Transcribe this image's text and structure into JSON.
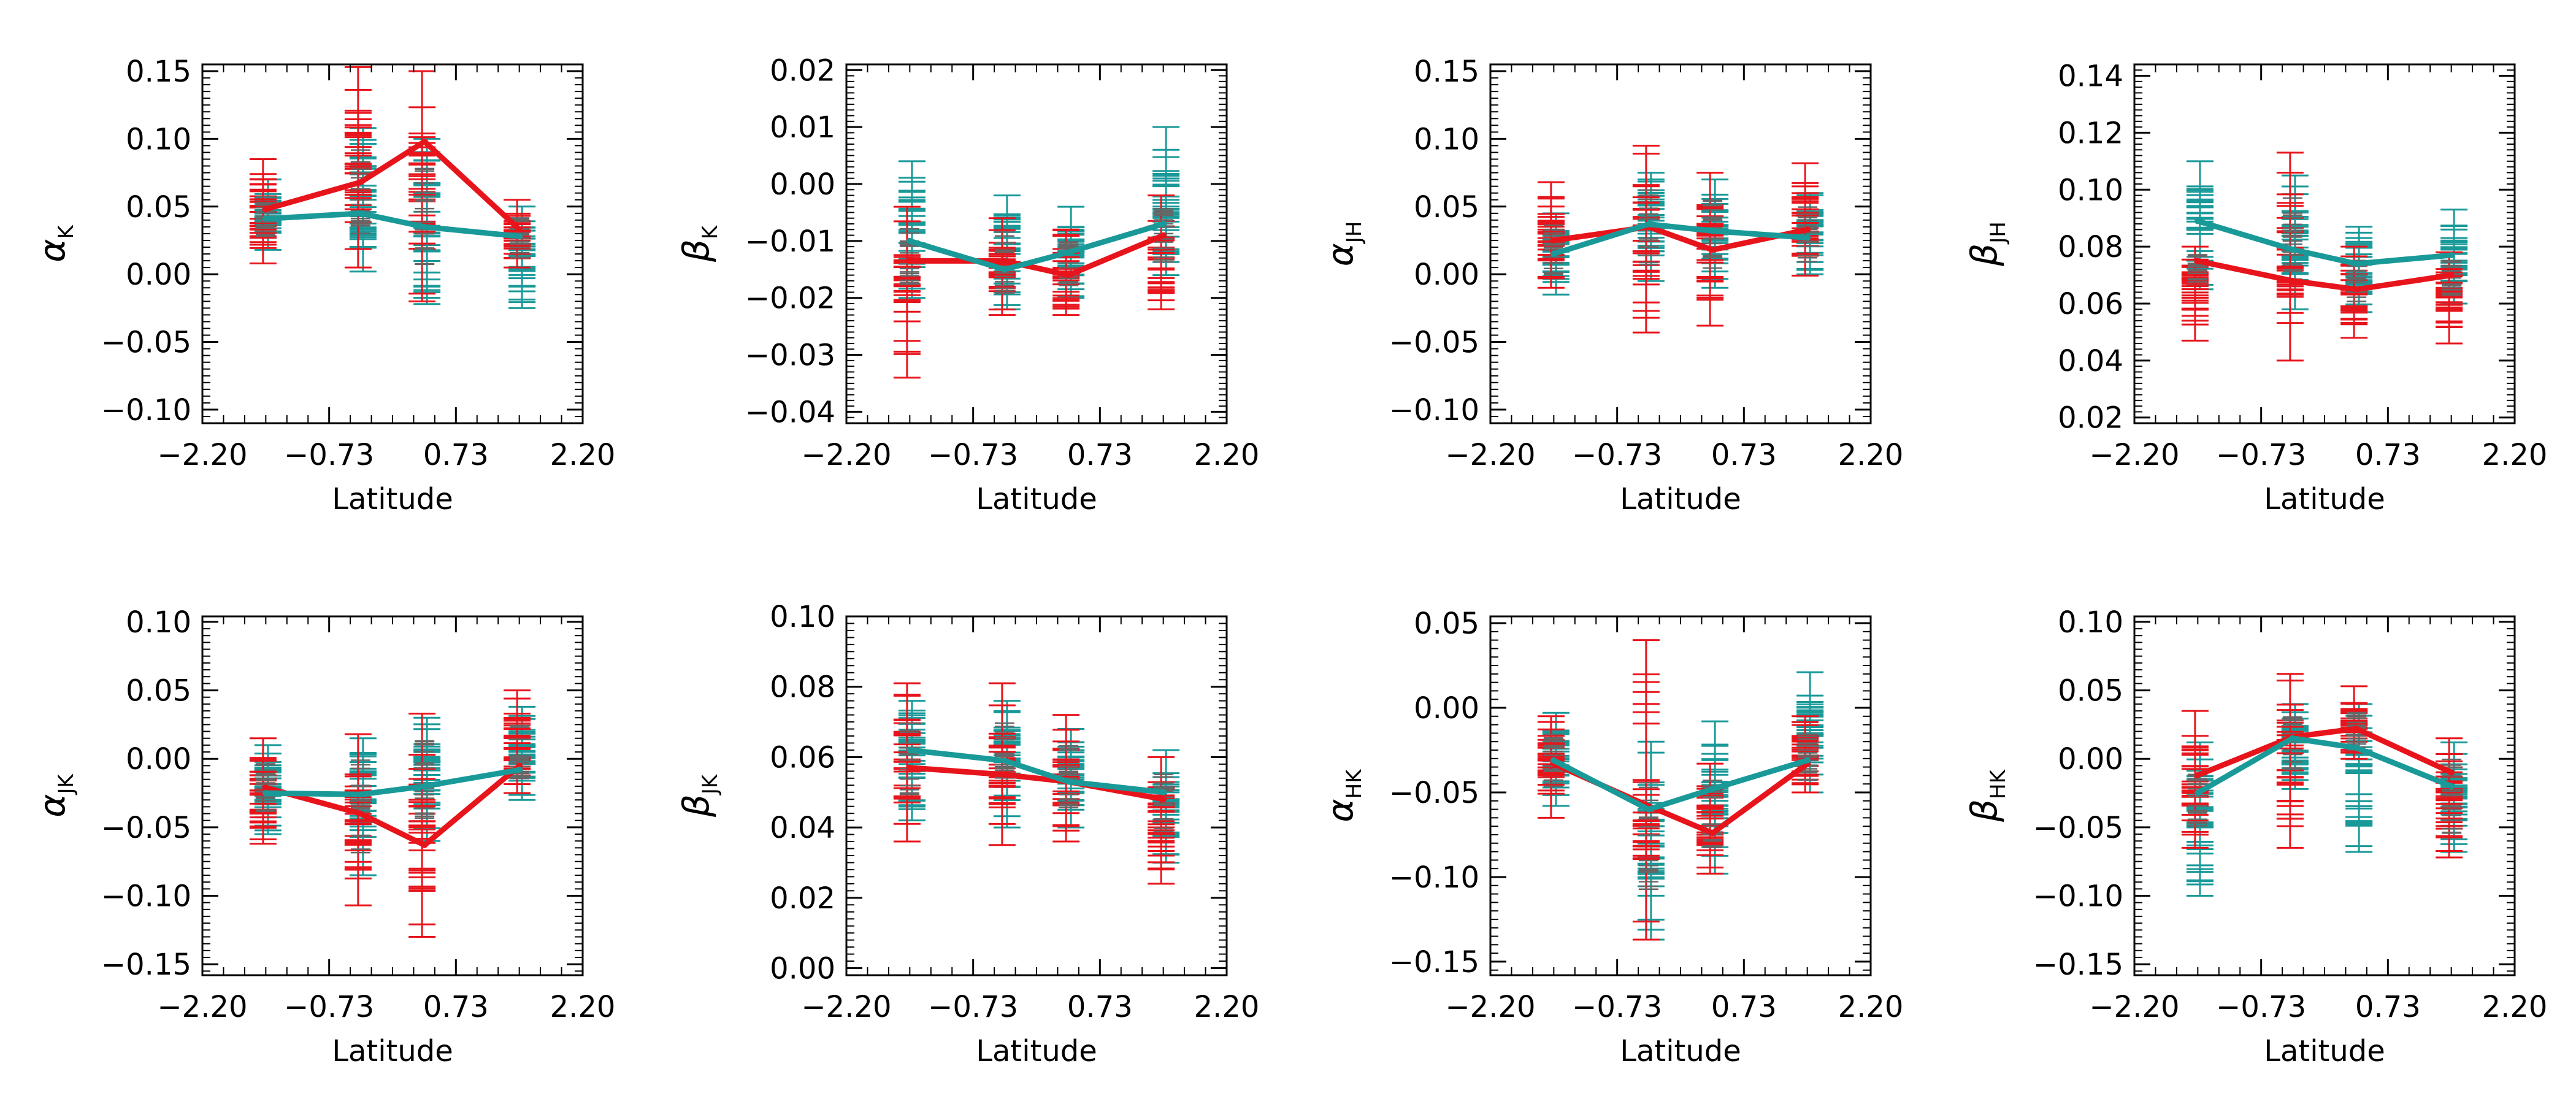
{
  "colors": {
    "series_red": "#e8141c",
    "series_teal": "#1a9999",
    "errorbar_dark": "#666666"
  },
  "chart_data": [
    {
      "type": "line",
      "title": "",
      "xlabel": "Latitude",
      "ylabel_main": "α",
      "ylabel_sub": "K",
      "xticks": [
        "−2.20",
        "−0.73",
        "0.73",
        "2.20"
      ],
      "xlim": [
        -2.2,
        2.2
      ],
      "ylim": [
        -0.11,
        0.155
      ],
      "yticks": [
        -0.1,
        -0.05,
        0.0,
        0.05,
        0.1,
        0.15
      ],
      "ytick_labels": [
        "−0.10",
        "−0.05",
        "0.00",
        "0.05",
        "0.10",
        "0.15"
      ],
      "x": [
        -1.47,
        -0.37,
        0.37,
        1.47
      ],
      "series": [
        {
          "name": "red",
          "color": "#e8141c",
          "values": [
            0.048,
            0.068,
            0.098,
            0.033
          ]
        },
        {
          "name": "teal",
          "color": "#1a9999",
          "values": [
            0.041,
            0.045,
            0.035,
            0.028
          ]
        }
      ],
      "errorbar_bands": [
        {
          "red": [
            0.008,
            0.085
          ],
          "teal": [
            0.018,
            0.07
          ]
        },
        {
          "red": [
            0.005,
            0.153
          ],
          "teal": [
            0.002,
            0.108
          ]
        },
        {
          "red": [
            -0.02,
            0.15
          ],
          "teal": [
            -0.022,
            0.1
          ]
        },
        {
          "red": [
            0.005,
            0.055
          ],
          "teal": [
            -0.025,
            0.05
          ]
        }
      ]
    },
    {
      "type": "line",
      "title": "",
      "xlabel": "Latitude",
      "ylabel_main": "β",
      "ylabel_sub": "K",
      "xticks": [
        "−2.20",
        "−0.73",
        "0.73",
        "2.20"
      ],
      "xlim": [
        -2.2,
        2.2
      ],
      "ylim": [
        -0.042,
        0.021
      ],
      "yticks": [
        -0.04,
        -0.03,
        -0.02,
        -0.01,
        0.0,
        0.01,
        0.02
      ],
      "ytick_labels": [
        "−0.04",
        "−0.03",
        "−0.02",
        "−0.01",
        "0.00",
        "0.01",
        "0.02"
      ],
      "x": [
        -1.47,
        -0.37,
        0.37,
        1.47
      ],
      "series": [
        {
          "name": "red",
          "color": "#e8141c",
          "values": [
            -0.0135,
            -0.0135,
            -0.016,
            -0.009
          ]
        },
        {
          "name": "teal",
          "color": "#1a9999",
          "values": [
            -0.01,
            -0.015,
            -0.012,
            -0.007
          ]
        }
      ],
      "errorbar_bands": [
        {
          "red": [
            -0.034,
            -0.004
          ],
          "teal": [
            -0.02,
            0.004
          ]
        },
        {
          "red": [
            -0.023,
            -0.006
          ],
          "teal": [
            -0.022,
            -0.002
          ]
        },
        {
          "red": [
            -0.023,
            -0.008
          ],
          "teal": [
            -0.02,
            -0.004
          ]
        },
        {
          "red": [
            -0.022,
            -0.002
          ],
          "teal": [
            -0.016,
            0.01
          ]
        }
      ]
    },
    {
      "type": "line",
      "title": "",
      "xlabel": "Latitude",
      "ylabel_main": "α",
      "ylabel_sub": "JH",
      "xticks": [
        "−2.20",
        "−0.73",
        "0.73",
        "2.20"
      ],
      "xlim": [
        -2.2,
        2.2
      ],
      "ylim": [
        -0.11,
        0.155
      ],
      "yticks": [
        -0.1,
        -0.05,
        0.0,
        0.05,
        0.1,
        0.15
      ],
      "ytick_labels": [
        "−0.10",
        "−0.05",
        "0.00",
        "0.05",
        "0.10",
        "0.15"
      ],
      "x": [
        -1.47,
        -0.37,
        0.37,
        1.47
      ],
      "series": [
        {
          "name": "red",
          "color": "#e8141c",
          "values": [
            0.025,
            0.035,
            0.018,
            0.033
          ]
        },
        {
          "name": "teal",
          "color": "#1a9999",
          "values": [
            0.015,
            0.037,
            0.032,
            0.027
          ]
        }
      ],
      "errorbar_bands": [
        {
          "red": [
            -0.01,
            0.068
          ],
          "teal": [
            -0.015,
            0.045
          ]
        },
        {
          "red": [
            -0.043,
            0.095
          ],
          "teal": [
            -0.005,
            0.075
          ]
        },
        {
          "red": [
            -0.038,
            0.075
          ],
          "teal": [
            -0.01,
            0.07
          ]
        },
        {
          "red": [
            -0.001,
            0.082
          ],
          "teal": [
            0.0,
            0.06
          ]
        }
      ]
    },
    {
      "type": "line",
      "title": "",
      "xlabel": "Latitude",
      "ylabel_main": "β",
      "ylabel_sub": "JH",
      "xticks": [
        "−2.20",
        "−0.73",
        "0.73",
        "2.20"
      ],
      "xlim": [
        -2.2,
        2.2
      ],
      "ylim": [
        0.018,
        0.144
      ],
      "yticks": [
        0.02,
        0.04,
        0.06,
        0.08,
        0.1,
        0.12,
        0.14
      ],
      "ytick_labels": [
        "0.02",
        "0.04",
        "0.06",
        "0.08",
        "0.10",
        "0.12",
        "0.14"
      ],
      "x": [
        -1.47,
        -0.37,
        0.37,
        1.47
      ],
      "series": [
        {
          "name": "red",
          "color": "#e8141c",
          "values": [
            0.075,
            0.068,
            0.065,
            0.07
          ]
        },
        {
          "name": "teal",
          "color": "#1a9999",
          "values": [
            0.089,
            0.079,
            0.074,
            0.077
          ]
        }
      ],
      "errorbar_bands": [
        {
          "red": [
            0.047,
            0.08
          ],
          "teal": [
            0.065,
            0.11
          ]
        },
        {
          "red": [
            0.04,
            0.113
          ],
          "teal": [
            0.058,
            0.105
          ]
        },
        {
          "red": [
            0.048,
            0.08
          ],
          "teal": [
            0.057,
            0.087
          ]
        },
        {
          "red": [
            0.046,
            0.078
          ],
          "teal": [
            0.06,
            0.093
          ]
        }
      ]
    },
    {
      "type": "line",
      "title": "",
      "xlabel": "Latitude",
      "ylabel_main": "α",
      "ylabel_sub": "JK",
      "xticks": [
        "−2.20",
        "−0.73",
        "0.73",
        "2.20"
      ],
      "xlim": [
        -2.2,
        2.2
      ],
      "ylim": [
        -0.158,
        0.104
      ],
      "yticks": [
        -0.15,
        -0.1,
        -0.05,
        0.0,
        0.05,
        0.1
      ],
      "ytick_labels": [
        "−0.15",
        "−0.10",
        "−0.05",
        "0.00",
        "0.05",
        "0.10"
      ],
      "x": [
        -1.47,
        -0.37,
        0.37,
        1.47
      ],
      "series": [
        {
          "name": "red",
          "color": "#e8141c",
          "values": [
            -0.021,
            -0.04,
            -0.063,
            -0.005
          ]
        },
        {
          "name": "teal",
          "color": "#1a9999",
          "values": [
            -0.025,
            -0.026,
            -0.02,
            -0.008
          ]
        }
      ],
      "errorbar_bands": [
        {
          "red": [
            -0.062,
            0.015
          ],
          "teal": [
            -0.055,
            0.01
          ]
        },
        {
          "red": [
            -0.107,
            0.018
          ],
          "teal": [
            -0.085,
            0.015
          ]
        },
        {
          "red": [
            -0.13,
            0.033
          ],
          "teal": [
            -0.06,
            0.03
          ]
        },
        {
          "red": [
            -0.025,
            0.05
          ],
          "teal": [
            -0.03,
            0.038
          ]
        }
      ]
    },
    {
      "type": "line",
      "title": "",
      "xlabel": "Latitude",
      "ylabel_main": "β",
      "ylabel_sub": "JK",
      "xticks": [
        "−2.20",
        "−0.73",
        "0.73",
        "2.20"
      ],
      "xlim": [
        -2.2,
        2.2
      ],
      "ylim": [
        -0.002,
        0.1
      ],
      "yticks": [
        0.0,
        0.02,
        0.04,
        0.06,
        0.08,
        0.1
      ],
      "ytick_labels": [
        "0.00",
        "0.02",
        "0.04",
        "0.06",
        "0.08",
        "0.10"
      ],
      "x": [
        -1.47,
        -0.37,
        0.37,
        1.47
      ],
      "series": [
        {
          "name": "red",
          "color": "#e8141c",
          "values": [
            0.057,
            0.055,
            0.053,
            0.048
          ]
        },
        {
          "name": "teal",
          "color": "#1a9999",
          "values": [
            0.062,
            0.059,
            0.053,
            0.05
          ]
        }
      ],
      "errorbar_bands": [
        {
          "red": [
            0.036,
            0.081
          ],
          "teal": [
            0.042,
            0.076
          ]
        },
        {
          "red": [
            0.035,
            0.081
          ],
          "teal": [
            0.04,
            0.076
          ]
        },
        {
          "red": [
            0.036,
            0.072
          ],
          "teal": [
            0.04,
            0.068
          ]
        },
        {
          "red": [
            0.024,
            0.06
          ],
          "teal": [
            0.03,
            0.062
          ]
        }
      ]
    },
    {
      "type": "line",
      "title": "",
      "xlabel": "Latitude",
      "ylabel_main": "α",
      "ylabel_sub": "HK",
      "xticks": [
        "−2.20",
        "−0.73",
        "0.73",
        "2.20"
      ],
      "xlim": [
        -2.2,
        2.2
      ],
      "ylim": [
        -0.158,
        0.054
      ],
      "yticks": [
        -0.15,
        -0.1,
        -0.05,
        0.0,
        0.05
      ],
      "ytick_labels": [
        "−0.15",
        "−0.10",
        "−0.05",
        "0.00",
        "0.05"
      ],
      "x": [
        -1.47,
        -0.37,
        0.37,
        1.47
      ],
      "series": [
        {
          "name": "red",
          "color": "#e8141c",
          "values": [
            -0.033,
            -0.058,
            -0.074,
            -0.033
          ]
        },
        {
          "name": "teal",
          "color": "#1a9999",
          "values": [
            -0.031,
            -0.06,
            -0.048,
            -0.031
          ]
        }
      ],
      "errorbar_bands": [
        {
          "red": [
            -0.065,
            -0.005
          ],
          "teal": [
            -0.058,
            -0.003
          ]
        },
        {
          "red": [
            -0.137,
            0.04
          ],
          "teal": [
            -0.137,
            -0.02
          ]
        },
        {
          "red": [
            -0.098,
            -0.033
          ],
          "teal": [
            -0.098,
            -0.008
          ]
        },
        {
          "red": [
            -0.05,
            -0.005
          ],
          "teal": [
            -0.05,
            0.021
          ]
        }
      ]
    },
    {
      "type": "line",
      "title": "",
      "xlabel": "Latitude",
      "ylabel_main": "β",
      "ylabel_sub": "HK",
      "xticks": [
        "−2.20",
        "−0.73",
        "0.73",
        "2.20"
      ],
      "xlim": [
        -2.2,
        2.2
      ],
      "ylim": [
        -0.158,
        0.104
      ],
      "yticks": [
        -0.15,
        -0.1,
        -0.05,
        0.0,
        0.05,
        0.1
      ],
      "ytick_labels": [
        "−0.15",
        "−0.10",
        "−0.05",
        "0.00",
        "0.05",
        "0.10"
      ],
      "x": [
        -1.47,
        -0.37,
        0.37,
        1.47
      ],
      "series": [
        {
          "name": "red",
          "color": "#e8141c",
          "values": [
            -0.012,
            0.016,
            0.022,
            -0.01
          ]
        },
        {
          "name": "teal",
          "color": "#1a9999",
          "values": [
            -0.025,
            0.015,
            0.008,
            -0.02
          ]
        }
      ],
      "errorbar_bands": [
        {
          "red": [
            -0.065,
            0.035
          ],
          "teal": [
            -0.1,
            0.012
          ]
        },
        {
          "red": [
            -0.065,
            0.062
          ],
          "teal": [
            -0.022,
            0.04
          ]
        },
        {
          "red": [
            0.0,
            0.053
          ],
          "teal": [
            -0.068,
            0.04
          ]
        },
        {
          "red": [
            -0.072,
            0.015
          ],
          "teal": [
            -0.068,
            0.012
          ]
        }
      ]
    }
  ]
}
